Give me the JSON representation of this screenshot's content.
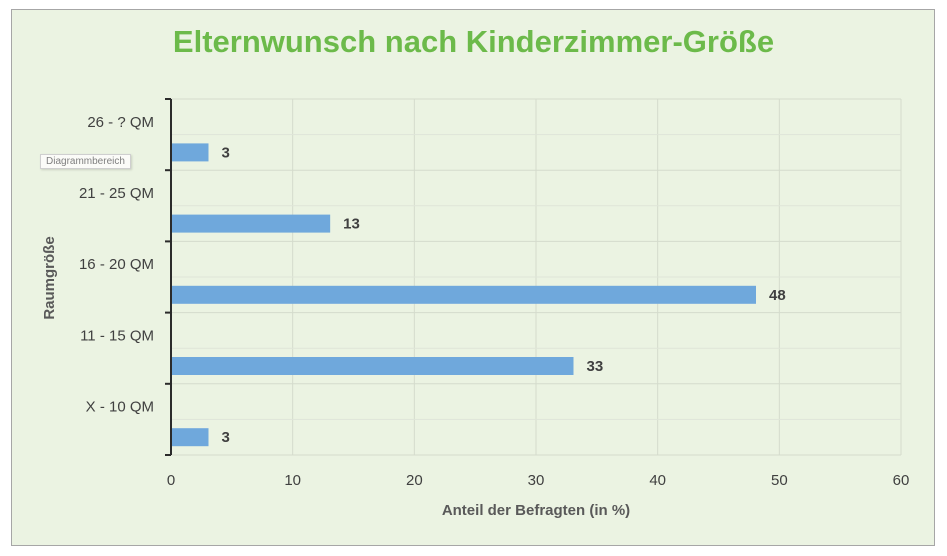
{
  "chart_data": {
    "type": "bar",
    "orientation": "horizontal",
    "title": "Elternwunsch nach Kinderzimmer-Größe",
    "xlabel": "Anteil der Befragten (in %)",
    "ylabel": "Raumgröße",
    "categories": [
      "X - 10 QM",
      "11 - 15 QM",
      "16 - 20 QM",
      "21 - 25 QM",
      "26 - ? QM"
    ],
    "values": [
      3,
      33,
      48,
      13,
      3
    ],
    "xlim": [
      0,
      60
    ],
    "xticks": [
      0,
      10,
      20,
      30,
      40,
      50,
      60
    ],
    "grid": true,
    "bar_color": "#6fa8dc",
    "background_color": "#ebf3e2",
    "title_color": "#6cba4a"
  },
  "ui": {
    "tooltip": "Diagrammbereich"
  }
}
